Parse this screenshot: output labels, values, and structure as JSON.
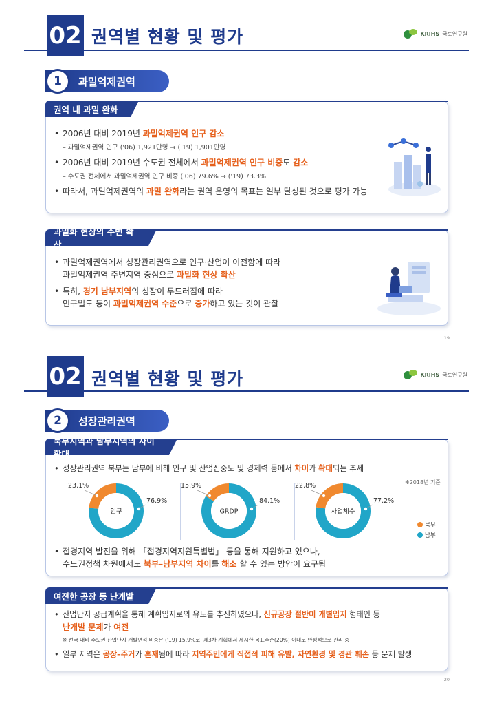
{
  "colors": {
    "navy": "#1f3b8c",
    "orange": "#f0892f",
    "teal": "#21a6c8",
    "highlight": "#e6601c"
  },
  "page1": {
    "section_number": "02",
    "section_title": "권역별 현황 및 평가",
    "logo_text": "KRIHS",
    "logo_sub": "국토연구원",
    "sub_number": "1",
    "sub_title": "과밀억제권역",
    "box1": {
      "heading": "권역 내 과밀 완화",
      "b1_pre": "2006년 대비 2019년 ",
      "b1_hl": "과밀억제권역 인구 감소",
      "s1": "– 과밀억제권역 인구 ('06) 1,921만명 → ('19) 1,901만명",
      "b2_pre": "2006년 대비 2019년 수도권 전체에서 ",
      "b2_hl": "과밀억제권역 인구 비중",
      "b2_mid": "도 ",
      "b2_hl2": "감소",
      "s2": "– 수도권 전체에서 과밀억제권역 인구 비중 ('06) 79.6% → ('19) 73.3%",
      "b3_pre": "따라서, 과밀억제권역의 ",
      "b3_hl": "과밀 완화",
      "b3_post": "라는 권역 운영의 목표는 일부 달성된 것으로 평가 가능"
    },
    "box2": {
      "heading": "과밀화 현상의 주변 확산",
      "b1_l1": "과밀억제권역에서 성장관리권역으로 인구·산업이 이전함에 따라",
      "b1_l2_pre": "과밀억제권역 주변지역 중심으로 ",
      "b1_l2_hl": "과밀화 현상 확산",
      "b2_l1_pre": "특히, ",
      "b2_l1_hl": "경기 남부지역",
      "b2_l1_post": "의 성장이 두드러짐에 따라",
      "b2_l2_pre": "인구밀도 등이 ",
      "b2_l2_hl": "과밀억제권역 수준",
      "b2_l2_mid": "으로 ",
      "b2_l2_hl2": "증가",
      "b2_l2_post": "하고 있는 것이 관찰"
    },
    "page_number": "19",
    "icons": [
      "figure-growth-chart-icon",
      "figure-person-laptop-icon"
    ]
  },
  "page2": {
    "section_number": "02",
    "section_title": "권역별 현황 및 평가",
    "logo_text": "KRIHS",
    "logo_sub": "국토연구원",
    "sub_number": "2",
    "sub_title": "성장관리권역",
    "box1": {
      "heading": "북부지역과 남부지역의 차이 확대",
      "b1_pre": "성장관리권역 북부는 남부에 비해 인구 및 산업집중도 및 경제력 등에서 ",
      "b1_hl": "차이",
      "b1_mid": "가 ",
      "b1_hl2": "확대",
      "b1_post": "되는 추세",
      "note": "※2018년 기준",
      "b2_l1": "접경지역 발전을 위해 「접경지역지원특별법」 등을 통해 지원하고 있으나,",
      "b2_l2_pre": "수도권정책 차원에서도 ",
      "b2_l2_hl": "북부–남부지역 차이",
      "b2_l2_mid": "를 ",
      "b2_l2_hl2": "해소",
      "b2_l2_post": " 할 수 있는 방안이 요구됨",
      "legend": [
        "북부",
        "남부"
      ]
    },
    "donuts": [
      {
        "label": "인구",
        "north": 23.1,
        "south": 76.9,
        "north_label": "23.1%",
        "south_label": "76.9%"
      },
      {
        "label": "GRDP",
        "north": 15.9,
        "south": 84.1,
        "north_label": "15.9%",
        "south_label": "84.1%"
      },
      {
        "label": "사업체수",
        "north": 22.8,
        "south": 77.2,
        "north_label": "22.8%",
        "south_label": "77.2%"
      }
    ],
    "box2": {
      "heading": "여전한 공장 등 난개발",
      "b1_l1_pre": "산업단지 공급계획을 통해 계획입지로의 유도를 추진하였으나, ",
      "b1_l1_hl": "신규공장 절반이 개별입지",
      "b1_l1_post": " 형태인 등",
      "b1_l2_hl": "난개발 문제",
      "b1_l2_mid": "가 ",
      "b1_l2_hl2": "여전",
      "note": "※ 전국 대비 수도권 산업단지 개발면적 비중은 ('19) 15.9%로, 제3차 계획에서 제시한 목표수준(20%) 이내로 안정적으로 관리 중",
      "b2_pre": "일부 지역은 ",
      "b2_hl": "공장–주거",
      "b2_mid": "가 ",
      "b2_hl2": "혼재",
      "b2_mid2": "됨에 따라 ",
      "b2_hl3": "지역주민에게 직접적 피해 유발, 자연환경 및 경관 훼손",
      "b2_post": " 등 문제 발생"
    },
    "page_number": "20"
  }
}
